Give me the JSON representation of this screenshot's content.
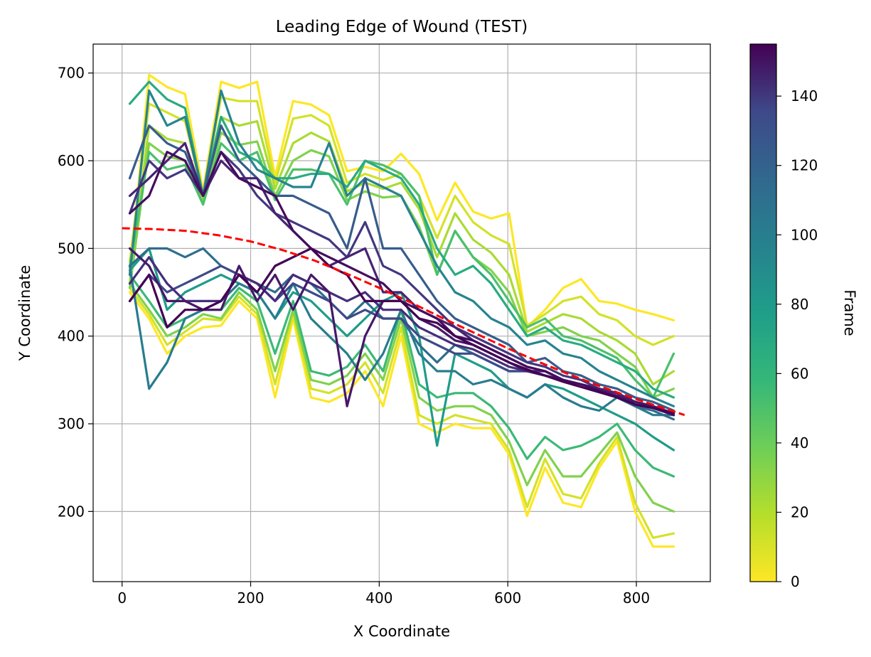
{
  "chart_data": {
    "type": "line",
    "title": "Leading Edge of Wound (TEST)",
    "xlabel": "X Coordinate",
    "ylabel": "Y Coordinate",
    "xlim": [
      -45,
      915
    ],
    "ylim": [
      120,
      733
    ],
    "xticks": [
      0,
      200,
      400,
      600,
      800
    ],
    "yticks": [
      200,
      300,
      400,
      500,
      600,
      700
    ],
    "grid": true,
    "x": [
      12,
      42,
      70,
      98,
      126,
      154,
      182,
      210,
      238,
      266,
      294,
      322,
      350,
      378,
      406,
      434,
      462,
      490,
      518,
      546,
      574,
      602,
      630,
      658,
      686,
      714,
      742,
      770,
      798,
      826,
      858
    ],
    "series_count": 155,
    "series_color_by": "frame",
    "representative_series": [
      {
        "frame": 0,
        "values": [
          470,
          698,
          684,
          676,
          566,
          690,
          683,
          690,
          582,
          668,
          664,
          652,
          588,
          593,
          588,
          608,
          585,
          532,
          575,
          542,
          534,
          540,
          410,
          430,
          455,
          465,
          440,
          437,
          430,
          425,
          418
        ]
      },
      {
        "frame": 10,
        "values": [
          485,
          665,
          655,
          645,
          560,
          672,
          668,
          668,
          575,
          648,
          652,
          640,
          575,
          585,
          578,
          585,
          560,
          512,
          560,
          530,
          515,
          505,
          412,
          425,
          440,
          445,
          425,
          418,
          400,
          390,
          400
        ]
      },
      {
        "frame": 20,
        "values": [
          460,
          640,
          625,
          620,
          555,
          650,
          640,
          645,
          568,
          620,
          632,
          622,
          565,
          575,
          568,
          575,
          545,
          490,
          540,
          510,
          495,
          470,
          405,
          415,
          425,
          420,
          405,
          395,
          380,
          345,
          360
        ]
      },
      {
        "frame": 30,
        "values": [
          455,
          620,
          605,
          600,
          552,
          632,
          618,
          622,
          560,
          600,
          612,
          605,
          555,
          565,
          558,
          560,
          525,
          470,
          520,
          490,
          475,
          450,
          400,
          405,
          410,
          400,
          395,
          380,
          365,
          330,
          340
        ]
      },
      {
        "frame": 0,
        "values": [
          450,
          420,
          380,
          400,
          410,
          412,
          440,
          420,
          330,
          420,
          330,
          325,
          335,
          360,
          320,
          400,
          300,
          290,
          300,
          295,
          295,
          265,
          195,
          250,
          210,
          205,
          250,
          280,
          200,
          160,
          160
        ]
      },
      {
        "frame": 10,
        "values": [
          455,
          425,
          390,
          405,
          420,
          418,
          445,
          425,
          345,
          425,
          340,
          335,
          345,
          370,
          335,
          410,
          310,
          300,
          310,
          305,
          300,
          270,
          205,
          260,
          220,
          215,
          255,
          285,
          210,
          170,
          175
        ]
      },
      {
        "frame": 30,
        "values": [
          460,
          430,
          400,
          410,
          425,
          420,
          450,
          430,
          360,
          430,
          350,
          345,
          355,
          380,
          350,
          420,
          330,
          315,
          320,
          320,
          310,
          280,
          230,
          270,
          240,
          240,
          265,
          290,
          240,
          210,
          200
        ]
      },
      {
        "frame": 45,
        "values": [
          480,
          610,
          590,
          595,
          550,
          620,
          600,
          610,
          555,
          590,
          590,
          585,
          550,
          600,
          595,
          585,
          560,
          470,
          520,
          490,
          470,
          440,
          410,
          420,
          400,
          395,
          385,
          375,
          350,
          330,
          380
        ]
      },
      {
        "frame": 50,
        "values": [
          470,
          440,
          410,
          420,
          430,
          430,
          455,
          440,
          380,
          440,
          360,
          355,
          365,
          390,
          360,
          430,
          345,
          330,
          335,
          335,
          320,
          295,
          260,
          285,
          270,
          275,
          285,
          300,
          270,
          250,
          240
        ]
      },
      {
        "frame": 60,
        "values": [
          665,
          690,
          670,
          660,
          560,
          650,
          610,
          600,
          580,
          580,
          585,
          585,
          570,
          600,
          590,
          580,
          550,
          500,
          470,
          480,
          460,
          430,
          400,
          410,
          395,
          390,
          380,
          370,
          360,
          340,
          330
        ]
      },
      {
        "frame": 70,
        "values": [
          475,
          500,
          430,
          450,
          460,
          470,
          460,
          450,
          420,
          450,
          440,
          420,
          400,
          420,
          440,
          450,
          400,
          275,
          380,
          370,
          360,
          340,
          330,
          345,
          340,
          330,
          320,
          310,
          300,
          285,
          270
        ]
      },
      {
        "frame": 85,
        "values": [
          470,
          680,
          640,
          650,
          560,
          680,
          620,
          590,
          580,
          570,
          570,
          620,
          560,
          580,
          570,
          560,
          520,
          480,
          450,
          440,
          420,
          410,
          390,
          395,
          380,
          375,
          360,
          350,
          340,
          330,
          320
        ]
      },
      {
        "frame": 90,
        "values": [
          480,
          340,
          370,
          420,
          430,
          440,
          460,
          450,
          420,
          460,
          420,
          400,
          380,
          350,
          380,
          430,
          380,
          360,
          360,
          345,
          350,
          340,
          330,
          345,
          330,
          320,
          315,
          330,
          320,
          310,
          310
        ]
      },
      {
        "frame": 100,
        "values": [
          480,
          500,
          500,
          490,
          500,
          480,
          470,
          460,
          450,
          470,
          460,
          440,
          420,
          440,
          420,
          420,
          390,
          370,
          390,
          380,
          370,
          360,
          360,
          360,
          350,
          345,
          340,
          330,
          320,
          315,
          305
        ]
      },
      {
        "frame": 110,
        "values": [
          580,
          640,
          620,
          610,
          560,
          640,
          600,
          580,
          560,
          560,
          550,
          540,
          500,
          580,
          500,
          500,
          470,
          440,
          420,
          410,
          400,
          390,
          370,
          375,
          360,
          355,
          345,
          340,
          330,
          325,
          315
        ]
      },
      {
        "frame": 120,
        "values": [
          440,
          470,
          450,
          460,
          470,
          480,
          470,
          460,
          440,
          460,
          450,
          440,
          420,
          430,
          420,
          420,
          400,
          390,
          380,
          380,
          370,
          360,
          360,
          355,
          350,
          345,
          340,
          335,
          325,
          320,
          310
        ]
      },
      {
        "frame": 130,
        "values": [
          540,
          600,
          580,
          590,
          560,
          610,
          590,
          560,
          540,
          530,
          520,
          510,
          490,
          530,
          480,
          470,
          450,
          430,
          410,
          400,
          390,
          380,
          370,
          365,
          355,
          350,
          340,
          335,
          325,
          320,
          310
        ]
      },
      {
        "frame": 135,
        "values": [
          460,
          490,
          460,
          440,
          440,
          440,
          470,
          460,
          440,
          470,
          460,
          450,
          440,
          450,
          430,
          430,
          410,
          400,
          390,
          385,
          375,
          365,
          360,
          360,
          350,
          345,
          340,
          330,
          325,
          320,
          310
        ]
      },
      {
        "frame": 140,
        "values": [
          560,
          580,
          600,
          620,
          560,
          600,
          580,
          580,
          540,
          520,
          500,
          480,
          490,
          500,
          450,
          450,
          430,
          420,
          410,
          395,
          385,
          375,
          365,
          360,
          350,
          345,
          340,
          335,
          325,
          320,
          312
        ]
      },
      {
        "frame": 145,
        "values": [
          500,
          480,
          440,
          440,
          430,
          430,
          480,
          440,
          470,
          430,
          470,
          450,
          320,
          400,
          440,
          440,
          420,
          410,
          395,
          390,
          380,
          370,
          360,
          355,
          350,
          345,
          338,
          332,
          325,
          320,
          310
        ]
      },
      {
        "frame": 150,
        "values": [
          540,
          560,
          610,
          600,
          560,
          610,
          580,
          570,
          560,
          520,
          500,
          490,
          480,
          470,
          460,
          440,
          430,
          420,
          400,
          395,
          385,
          375,
          365,
          360,
          350,
          345,
          338,
          330,
          322,
          318,
          310
        ]
      },
      {
        "frame": 155,
        "values": [
          440,
          470,
          410,
          430,
          430,
          440,
          470,
          450,
          480,
          490,
          500,
          480,
          470,
          440,
          440,
          440,
          420,
          415,
          400,
          390,
          380,
          370,
          362,
          355,
          348,
          342,
          336,
          330,
          322,
          318,
          312
        ]
      }
    ],
    "fit_curve": {
      "label": "",
      "color": "#ff0000",
      "style": "dashed",
      "x": [
        0,
        50,
        100,
        150,
        200,
        250,
        300,
        350,
        400,
        450,
        500,
        550,
        600,
        650,
        700,
        750,
        800,
        850,
        875
      ],
      "y": [
        523,
        522,
        520,
        515,
        508,
        498,
        486,
        471,
        455,
        438,
        420,
        403,
        386,
        370,
        355,
        341,
        328,
        316,
        310
      ]
    },
    "colorbar": {
      "label": "Frame",
      "colormap": "viridis",
      "min": 0,
      "max": 155,
      "ticks": [
        0,
        20,
        40,
        60,
        80,
        100,
        120,
        140
      ]
    }
  }
}
